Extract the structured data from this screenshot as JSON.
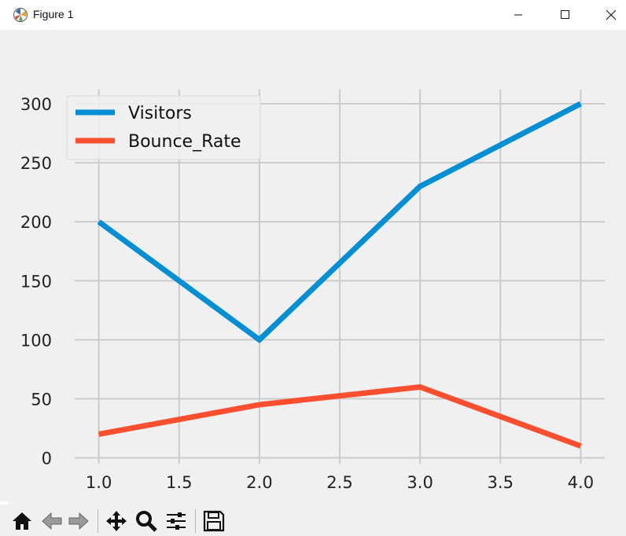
{
  "window": {
    "title": "Figure 1"
  },
  "toolbar": {
    "buttons": [
      "home-icon",
      "back-icon",
      "forward-icon",
      "pan-icon",
      "zoom-icon",
      "configure-subplots-icon",
      "save-icon"
    ]
  },
  "colors": {
    "visitors": "#008fd5",
    "bounce_rate": "#fc4f30",
    "grid": "#cbcbcb",
    "background": "#f0f0f0"
  },
  "chart_data": {
    "type": "line",
    "style": "fivethirtyeight",
    "x": [
      1,
      2,
      3,
      4
    ],
    "series": [
      {
        "name": "Visitors",
        "values": [
          200,
          100,
          230,
          300
        ]
      },
      {
        "name": "Bounce_Rate",
        "values": [
          20,
          45,
          60,
          10
        ]
      }
    ],
    "xlim": [
      0.85,
      4.15
    ],
    "ylim": [
      -5,
      312
    ],
    "x_ticks": [
      "1.0",
      "1.5",
      "2.0",
      "2.5",
      "3.0",
      "3.5",
      "4.0"
    ],
    "y_ticks": [
      "0",
      "50",
      "100",
      "150",
      "200",
      "250",
      "300"
    ],
    "legend": "upper left",
    "grid": true
  }
}
